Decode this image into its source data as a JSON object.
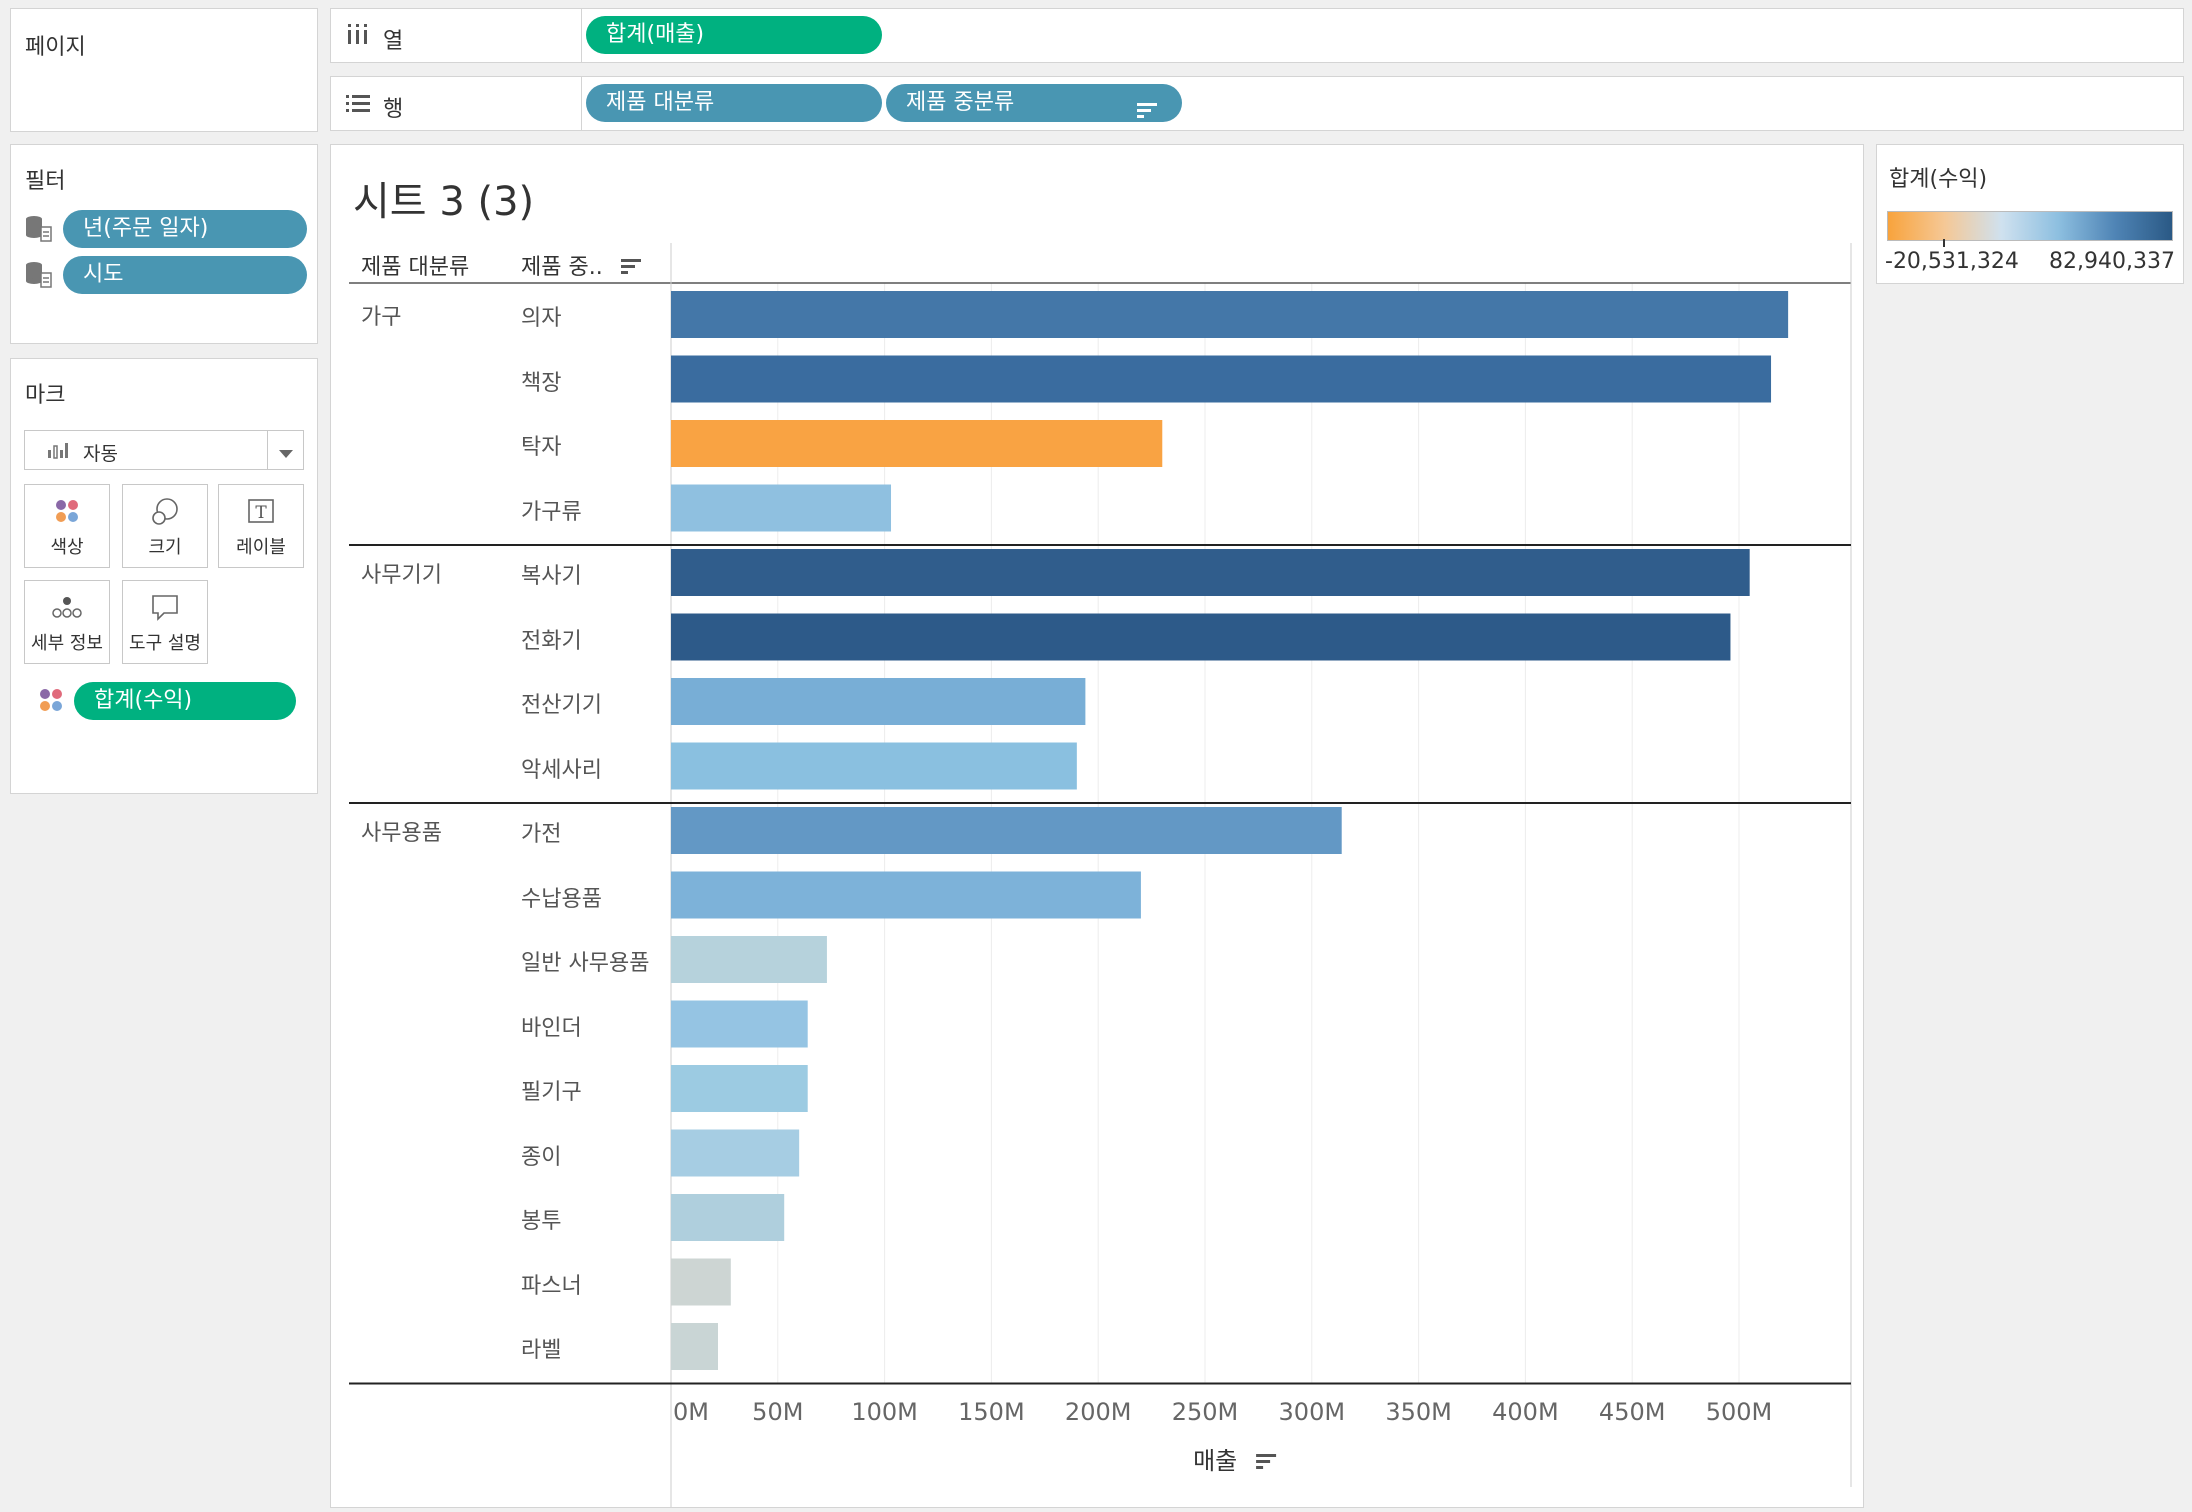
{
  "pages_card": {
    "title": "페이지"
  },
  "filters_card": {
    "title": "필터",
    "items": [
      {
        "label": "년(주문 일자)"
      },
      {
        "label": "시도"
      }
    ]
  },
  "marks_card": {
    "title": "마크",
    "mark_type": "자동",
    "buttons": [
      {
        "label": "색상",
        "icon": "color-dots-icon"
      },
      {
        "label": "크기",
        "icon": "size-icon"
      },
      {
        "label": "레이블",
        "icon": "label-icon"
      },
      {
        "label": "세부 정보",
        "icon": "detail-icon"
      },
      {
        "label": "도구 설명",
        "icon": "tooltip-icon"
      }
    ],
    "color_field": "합계(수익)"
  },
  "shelves": {
    "columns": {
      "label": "열",
      "pills": [
        "합계(매출)"
      ]
    },
    "rows": {
      "label": "행",
      "pills": [
        "제품 대분류",
        "제품 중분류"
      ]
    }
  },
  "legend": {
    "title": "합계(수익)",
    "min_label": "-20,531,324",
    "max_label": "82,940,337",
    "colors": [
      "#f8a33c",
      "#f5c896",
      "#cfe1ef",
      "#8dbfe0",
      "#4f84b5",
      "#2a5985"
    ]
  },
  "sheet": {
    "title": "시트 3 (3)",
    "header_col1": "제품 대분류",
    "header_col2": "제품 중..",
    "xlabel": "매출"
  },
  "chart_data": {
    "type": "bar",
    "orientation": "horizontal",
    "xlabel": "매출",
    "xlim": [
      0,
      550
    ],
    "x_unit": "M",
    "xticks": [
      "0M",
      "50M",
      "100M",
      "150M",
      "200M",
      "250M",
      "300M",
      "350M",
      "400M",
      "450M",
      "500M"
    ],
    "groups": [
      {
        "name": "가구",
        "bars": [
          {
            "label": "의자",
            "value": 523,
            "color": "#4477a8"
          },
          {
            "label": "책장",
            "value": 515,
            "color": "#3a6c9f"
          },
          {
            "label": "탁자",
            "value": 230,
            "color": "#f9a343"
          },
          {
            "label": "가구류",
            "value": 103,
            "color": "#8fc0e0"
          }
        ]
      },
      {
        "name": "사무기기",
        "bars": [
          {
            "label": "복사기",
            "value": 505,
            "color": "#305d8c"
          },
          {
            "label": "전화기",
            "value": 496,
            "color": "#2d5a89"
          },
          {
            "label": "전산기기",
            "value": 194,
            "color": "#78aed6"
          },
          {
            "label": "악세사리",
            "value": 190,
            "color": "#8ac0e0"
          }
        ]
      },
      {
        "name": "사무용품",
        "bars": [
          {
            "label": "가전",
            "value": 314,
            "color": "#6398c5"
          },
          {
            "label": "수납용품",
            "value": 220,
            "color": "#7db2d9"
          },
          {
            "label": "일반 사무용품",
            "value": 73,
            "color": "#b6d2dc"
          },
          {
            "label": "바인더",
            "value": 64,
            "color": "#95c4e3"
          },
          {
            "label": "필기구",
            "value": 64,
            "color": "#9ccbe2"
          },
          {
            "label": "종이",
            "value": 60,
            "color": "#a6cde3"
          },
          {
            "label": "봉투",
            "value": 53,
            "color": "#afcfdd"
          },
          {
            "label": "파스너",
            "value": 28,
            "color": "#cdd5d3"
          },
          {
            "label": "라벨",
            "value": 22,
            "color": "#c9d5d5"
          }
        ]
      }
    ]
  }
}
